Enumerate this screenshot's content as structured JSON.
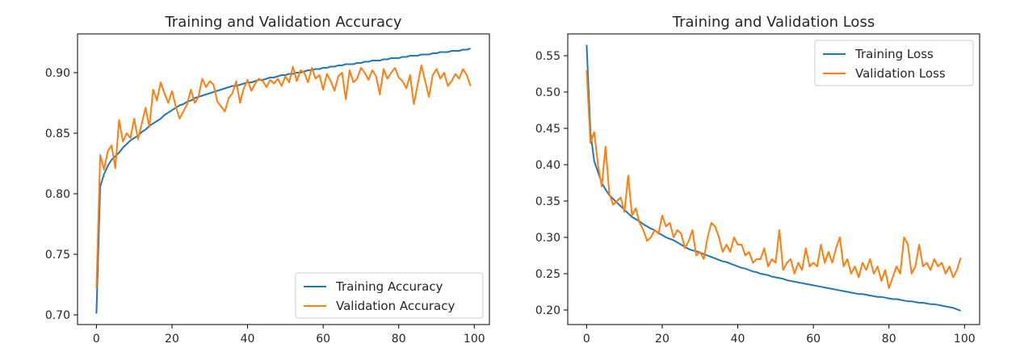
{
  "chart_data": [
    {
      "type": "line",
      "title": "Training and Validation Accuracy",
      "xlabel": "",
      "ylabel": "",
      "xlim": [
        -5,
        104
      ],
      "ylim": [
        0.692,
        0.932
      ],
      "xticks": [
        0,
        20,
        40,
        60,
        80,
        100
      ],
      "yticks": [
        0.7,
        0.75,
        0.8,
        0.85,
        0.9
      ],
      "grid": false,
      "legend_position": "lower right",
      "series": [
        {
          "name": "Training Accuracy",
          "color": "#1f77b4",
          "x": [
            0,
            1,
            2,
            3,
            4,
            5,
            6,
            7,
            8,
            9,
            10,
            11,
            12,
            13,
            14,
            15,
            16,
            17,
            18,
            19,
            20,
            21,
            22,
            23,
            24,
            25,
            26,
            27,
            28,
            29,
            30,
            31,
            32,
            33,
            34,
            35,
            36,
            37,
            38,
            39,
            40,
            41,
            42,
            43,
            44,
            45,
            46,
            47,
            48,
            49,
            50,
            51,
            52,
            53,
            54,
            55,
            56,
            57,
            58,
            59,
            60,
            61,
            62,
            63,
            64,
            65,
            66,
            67,
            68,
            69,
            70,
            71,
            72,
            73,
            74,
            75,
            76,
            77,
            78,
            79,
            80,
            81,
            82,
            83,
            84,
            85,
            86,
            87,
            88,
            89,
            90,
            91,
            92,
            93,
            94,
            95,
            96,
            97,
            98,
            99
          ],
          "values": [
            0.701,
            0.806,
            0.816,
            0.823,
            0.828,
            0.831,
            0.834,
            0.838,
            0.841,
            0.844,
            0.846,
            0.848,
            0.851,
            0.853,
            0.856,
            0.858,
            0.86,
            0.862,
            0.865,
            0.867,
            0.869,
            0.871,
            0.873,
            0.874,
            0.876,
            0.877,
            0.879,
            0.88,
            0.881,
            0.882,
            0.883,
            0.884,
            0.885,
            0.886,
            0.887,
            0.888,
            0.889,
            0.889,
            0.89,
            0.891,
            0.892,
            0.892,
            0.893,
            0.894,
            0.894,
            0.895,
            0.896,
            0.896,
            0.897,
            0.898,
            0.898,
            0.899,
            0.899,
            0.9,
            0.9,
            0.901,
            0.902,
            0.902,
            0.903,
            0.903,
            0.904,
            0.904,
            0.905,
            0.905,
            0.906,
            0.906,
            0.907,
            0.907,
            0.907,
            0.908,
            0.908,
            0.909,
            0.909,
            0.91,
            0.91,
            0.91,
            0.911,
            0.911,
            0.912,
            0.912,
            0.912,
            0.913,
            0.913,
            0.914,
            0.914,
            0.914,
            0.915,
            0.915,
            0.915,
            0.916,
            0.916,
            0.917,
            0.917,
            0.917,
            0.918,
            0.918,
            0.918,
            0.919,
            0.919,
            0.92
          ]
        },
        {
          "name": "Validation Accuracy",
          "color": "#ff7f0e",
          "x": [
            0,
            1,
            2,
            3,
            4,
            5,
            6,
            7,
            8,
            9,
            10,
            11,
            12,
            13,
            14,
            15,
            16,
            17,
            18,
            19,
            20,
            21,
            22,
            23,
            24,
            25,
            26,
            27,
            28,
            29,
            30,
            31,
            32,
            33,
            34,
            35,
            36,
            37,
            38,
            39,
            40,
            41,
            42,
            43,
            44,
            45,
            46,
            47,
            48,
            49,
            50,
            51,
            52,
            53,
            54,
            55,
            56,
            57,
            58,
            59,
            60,
            61,
            62,
            63,
            64,
            65,
            66,
            67,
            68,
            69,
            70,
            71,
            72,
            73,
            74,
            75,
            76,
            77,
            78,
            79,
            80,
            81,
            82,
            83,
            84,
            85,
            86,
            87,
            88,
            89,
            90,
            91,
            92,
            93,
            94,
            95,
            96,
            97,
            98,
            99
          ],
          "values": [
            0.722,
            0.832,
            0.82,
            0.835,
            0.84,
            0.821,
            0.861,
            0.843,
            0.85,
            0.846,
            0.862,
            0.845,
            0.858,
            0.871,
            0.855,
            0.886,
            0.877,
            0.892,
            0.883,
            0.875,
            0.885,
            0.872,
            0.862,
            0.868,
            0.874,
            0.886,
            0.875,
            0.88,
            0.895,
            0.888,
            0.893,
            0.89,
            0.876,
            0.872,
            0.868,
            0.879,
            0.883,
            0.893,
            0.875,
            0.887,
            0.894,
            0.885,
            0.891,
            0.895,
            0.893,
            0.888,
            0.894,
            0.891,
            0.895,
            0.889,
            0.897,
            0.892,
            0.905,
            0.893,
            0.902,
            0.9,
            0.892,
            0.904,
            0.895,
            0.898,
            0.886,
            0.899,
            0.893,
            0.885,
            0.897,
            0.9,
            0.878,
            0.902,
            0.892,
            0.895,
            0.904,
            0.9,
            0.894,
            0.902,
            0.897,
            0.882,
            0.903,
            0.895,
            0.9,
            0.904,
            0.896,
            0.893,
            0.887,
            0.898,
            0.874,
            0.89,
            0.906,
            0.893,
            0.88,
            0.898,
            0.903,
            0.895,
            0.9,
            0.889,
            0.893,
            0.899,
            0.895,
            0.903,
            0.898,
            0.889
          ]
        }
      ]
    },
    {
      "type": "line",
      "title": "Training and Validation Loss",
      "xlabel": "",
      "ylabel": "",
      "xlim": [
        -5,
        104
      ],
      "ylim": [
        0.18,
        0.58
      ],
      "xticks": [
        0,
        20,
        40,
        60,
        80,
        100
      ],
      "yticks": [
        0.2,
        0.25,
        0.3,
        0.35,
        0.4,
        0.45,
        0.5,
        0.55
      ],
      "grid": false,
      "legend_position": "upper right",
      "series": [
        {
          "name": "Training Loss",
          "color": "#1f77b4",
          "x": [
            0,
            1,
            2,
            3,
            4,
            5,
            6,
            7,
            8,
            9,
            10,
            11,
            12,
            13,
            14,
            15,
            16,
            17,
            18,
            19,
            20,
            21,
            22,
            23,
            24,
            25,
            26,
            27,
            28,
            29,
            30,
            31,
            32,
            33,
            34,
            35,
            36,
            37,
            38,
            39,
            40,
            41,
            42,
            43,
            44,
            45,
            46,
            47,
            48,
            49,
            50,
            51,
            52,
            53,
            54,
            55,
            56,
            57,
            58,
            59,
            60,
            61,
            62,
            63,
            64,
            65,
            66,
            67,
            68,
            69,
            70,
            71,
            72,
            73,
            74,
            75,
            76,
            77,
            78,
            79,
            80,
            81,
            82,
            83,
            84,
            85,
            86,
            87,
            88,
            89,
            90,
            91,
            92,
            93,
            94,
            95,
            96,
            97,
            98,
            99
          ],
          "values": [
            0.565,
            0.445,
            0.405,
            0.39,
            0.375,
            0.366,
            0.358,
            0.353,
            0.348,
            0.343,
            0.338,
            0.333,
            0.328,
            0.325,
            0.322,
            0.318,
            0.315,
            0.312,
            0.31,
            0.306,
            0.303,
            0.3,
            0.298,
            0.296,
            0.293,
            0.29,
            0.287,
            0.284,
            0.282,
            0.281,
            0.279,
            0.277,
            0.275,
            0.273,
            0.271,
            0.269,
            0.267,
            0.266,
            0.264,
            0.262,
            0.26,
            0.258,
            0.257,
            0.255,
            0.253,
            0.252,
            0.25,
            0.249,
            0.248,
            0.246,
            0.245,
            0.244,
            0.243,
            0.241,
            0.24,
            0.239,
            0.238,
            0.237,
            0.236,
            0.235,
            0.234,
            0.233,
            0.232,
            0.231,
            0.23,
            0.229,
            0.228,
            0.227,
            0.226,
            0.225,
            0.224,
            0.223,
            0.222,
            0.222,
            0.221,
            0.22,
            0.219,
            0.218,
            0.218,
            0.217,
            0.216,
            0.215,
            0.215,
            0.214,
            0.213,
            0.212,
            0.212,
            0.211,
            0.21,
            0.21,
            0.209,
            0.208,
            0.208,
            0.207,
            0.206,
            0.205,
            0.204,
            0.203,
            0.201,
            0.199
          ]
        },
        {
          "name": "Validation Loss",
          "color": "#ff7f0e",
          "x": [
            0,
            1,
            2,
            3,
            4,
            5,
            6,
            7,
            8,
            9,
            10,
            11,
            12,
            13,
            14,
            15,
            16,
            17,
            18,
            19,
            20,
            21,
            22,
            23,
            24,
            25,
            26,
            27,
            28,
            29,
            30,
            31,
            32,
            33,
            34,
            35,
            36,
            37,
            38,
            39,
            40,
            41,
            42,
            43,
            44,
            45,
            46,
            47,
            48,
            49,
            50,
            51,
            52,
            53,
            54,
            55,
            56,
            57,
            58,
            59,
            60,
            61,
            62,
            63,
            64,
            65,
            66,
            67,
            68,
            69,
            70,
            71,
            72,
            73,
            74,
            75,
            76,
            77,
            78,
            79,
            80,
            81,
            82,
            83,
            84,
            85,
            86,
            87,
            88,
            89,
            90,
            91,
            92,
            93,
            94,
            95,
            96,
            97,
            98,
            99
          ],
          "values": [
            0.53,
            0.43,
            0.445,
            0.4,
            0.37,
            0.425,
            0.36,
            0.345,
            0.35,
            0.355,
            0.335,
            0.385,
            0.33,
            0.34,
            0.32,
            0.31,
            0.295,
            0.3,
            0.31,
            0.305,
            0.33,
            0.315,
            0.32,
            0.3,
            0.31,
            0.305,
            0.285,
            0.295,
            0.31,
            0.275,
            0.28,
            0.27,
            0.3,
            0.32,
            0.315,
            0.3,
            0.28,
            0.29,
            0.28,
            0.3,
            0.29,
            0.29,
            0.275,
            0.28,
            0.265,
            0.27,
            0.27,
            0.285,
            0.26,
            0.27,
            0.265,
            0.31,
            0.255,
            0.265,
            0.27,
            0.25,
            0.265,
            0.255,
            0.285,
            0.26,
            0.265,
            0.26,
            0.29,
            0.265,
            0.28,
            0.265,
            0.285,
            0.3,
            0.26,
            0.27,
            0.25,
            0.26,
            0.245,
            0.265,
            0.255,
            0.27,
            0.25,
            0.26,
            0.24,
            0.255,
            0.23,
            0.245,
            0.26,
            0.25,
            0.3,
            0.29,
            0.25,
            0.26,
            0.29,
            0.26,
            0.265,
            0.255,
            0.27,
            0.26,
            0.265,
            0.25,
            0.26,
            0.245,
            0.255,
            0.272
          ]
        }
      ]
    }
  ]
}
